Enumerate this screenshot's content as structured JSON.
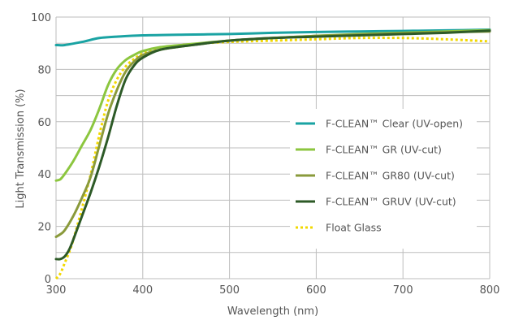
{
  "chart_data": {
    "type": "line",
    "title": "",
    "xlabel": "Wavelength (nm)",
    "ylabel": "Light Transmission (%)",
    "xlim": [
      300,
      800
    ],
    "ylim": [
      0,
      100
    ],
    "x_ticks": [
      "300",
      "400",
      "500",
      "600",
      "700",
      "800"
    ],
    "y_ticks": [
      "0",
      "20",
      "40",
      "60",
      "80",
      "100"
    ],
    "grid": true,
    "legend_position": "right",
    "series": [
      {
        "name": "F-CLEAN™ Clear (UV-open)",
        "color": "#1aa3a3",
        "style": "solid",
        "x": [
          300,
          310,
          330,
          350,
          370,
          400,
          450,
          500,
          550,
          600,
          650,
          700,
          750,
          800
        ],
        "y": [
          89.3,
          89.3,
          90.5,
          92,
          92.5,
          93,
          93.3,
          93.5,
          94,
          94.3,
          94.5,
          94.7,
          94.9,
          95.2
        ]
      },
      {
        "name": "F-CLEAN™ GR (UV-cut)",
        "color": "#8cc63f",
        "style": "solid",
        "x": [
          300,
          305,
          310,
          320,
          330,
          340,
          350,
          360,
          370,
          380,
          390,
          400,
          420,
          450,
          500,
          550,
          600,
          650,
          700,
          750,
          800
        ],
        "y": [
          37.5,
          38,
          40,
          45,
          51,
          57,
          65,
          74,
          80,
          83.5,
          85.5,
          87,
          88.5,
          89.5,
          91,
          92,
          92.8,
          93.5,
          94,
          94.5,
          95
        ]
      },
      {
        "name": "F-CLEAN™ GR80 (UV-cut)",
        "color": "#8a9a3b",
        "style": "solid",
        "x": [
          300,
          305,
          310,
          320,
          330,
          340,
          350,
          360,
          370,
          380,
          390,
          400,
          420,
          450,
          500,
          550,
          600,
          650,
          700,
          750,
          800
        ],
        "y": [
          16,
          17,
          18.5,
          24,
          31,
          39,
          51,
          63,
          72,
          79,
          83,
          85.5,
          87.5,
          89,
          91,
          92,
          92.8,
          93.3,
          93.8,
          94.2,
          94.5
        ]
      },
      {
        "name": "F-CLEAN™ GRUV (UV-cut)",
        "color": "#2d5a27",
        "style": "solid",
        "x": [
          300,
          305,
          310,
          315,
          320,
          330,
          340,
          350,
          360,
          370,
          380,
          390,
          400,
          420,
          450,
          500,
          550,
          600,
          650,
          700,
          750,
          800
        ],
        "y": [
          7.5,
          7.5,
          8.5,
          11,
          15,
          24,
          33,
          43,
          54,
          66,
          76,
          81.5,
          84.5,
          87.5,
          89,
          91,
          92,
          92.5,
          93,
          93.5,
          94,
          94.8
        ]
      },
      {
        "name": "Float Glass",
        "color": "#f2d800",
        "style": "dotted",
        "x": [
          300,
          305,
          310,
          315,
          320,
          330,
          340,
          350,
          360,
          370,
          380,
          390,
          400,
          420,
          450,
          500,
          550,
          600,
          650,
          700,
          750,
          800
        ],
        "y": [
          0,
          2,
          6,
          10,
          15,
          27,
          40,
          55,
          68,
          76,
          81,
          84,
          86,
          88,
          89.5,
          90.5,
          91,
          91.5,
          92,
          92,
          91.5,
          90.7
        ]
      }
    ]
  }
}
